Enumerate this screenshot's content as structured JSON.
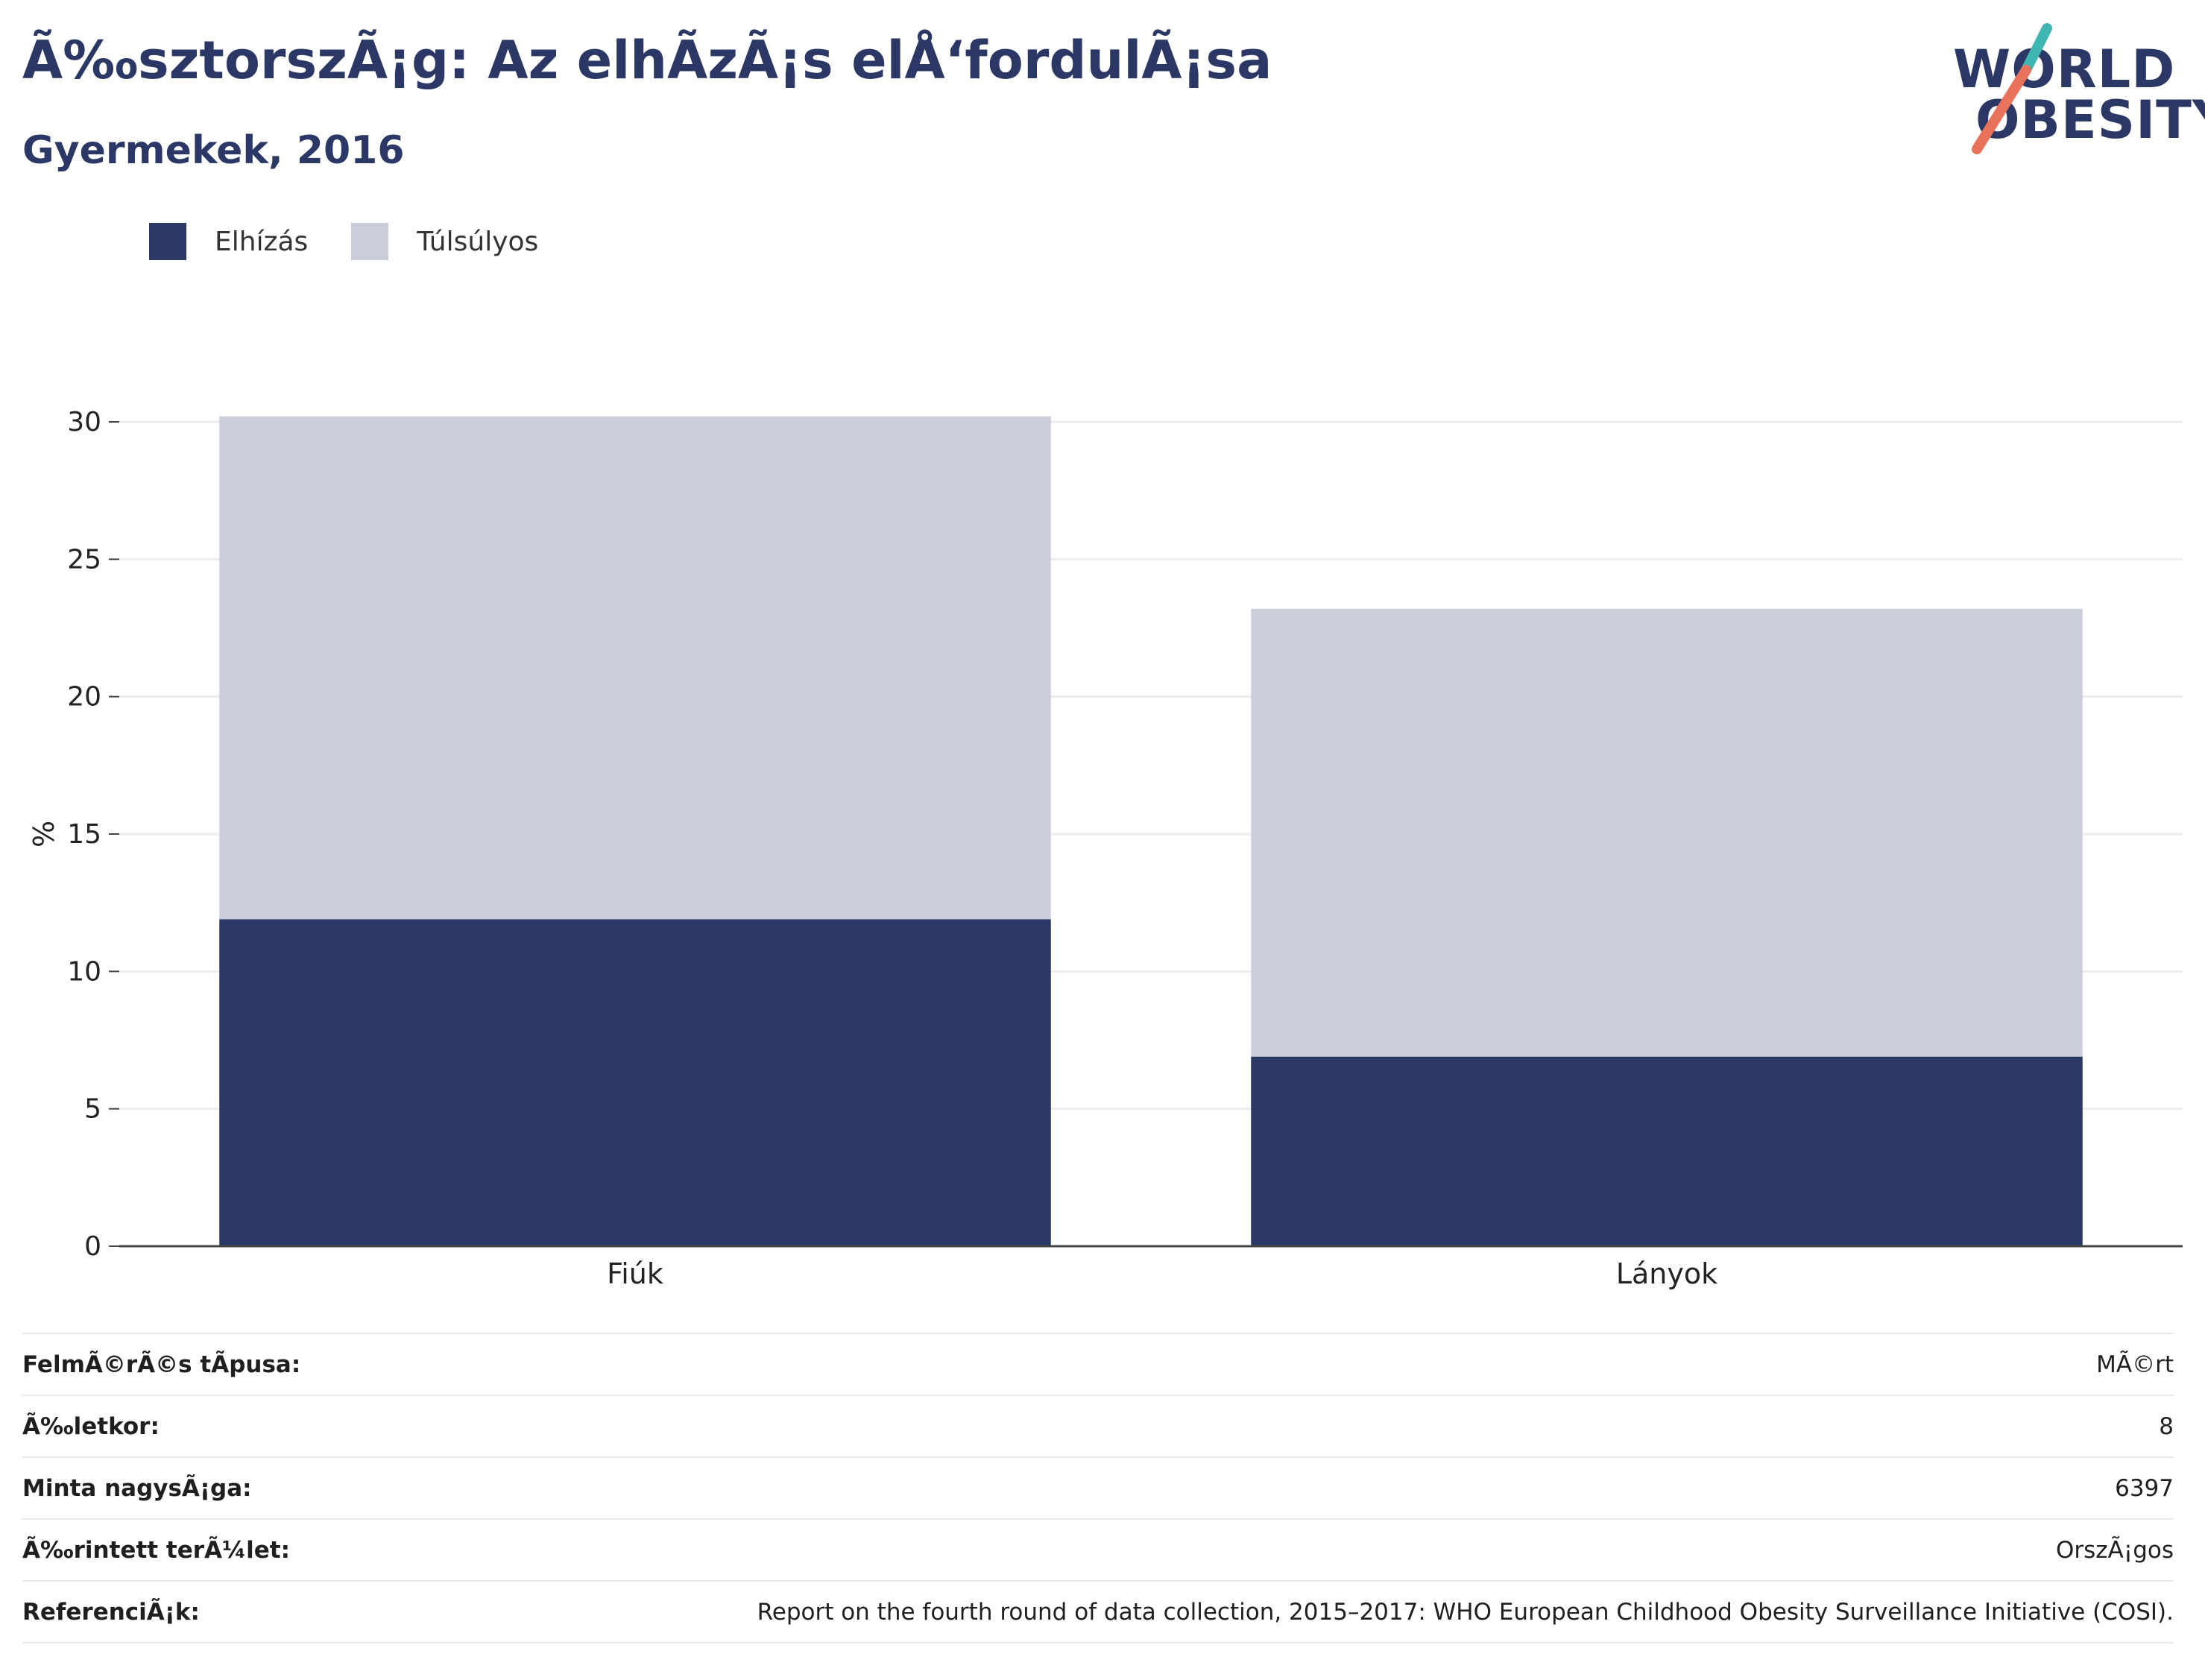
{
  "header": {
    "title": "Ã‰sztorszÃ¡g: Az elhÃzÃ¡s elÅ‘fordulÃ¡sa",
    "subtitle": "Gyermekek, 2016"
  },
  "logo": {
    "line1": "WORLD",
    "line2": "OBESITY",
    "slash_colors": [
      "#3fb6b2",
      "#e8735a"
    ]
  },
  "legend": {
    "items": [
      {
        "label": "Elhízás",
        "color": "#2b3764"
      },
      {
        "label": "Túlsúlyos",
        "color": "#cbcdd8"
      }
    ]
  },
  "chart_data": {
    "type": "bar",
    "stacked": true,
    "categories": [
      "Fiúk",
      "Lányok"
    ],
    "series": [
      {
        "name": "Elhízás",
        "values": [
          11.9,
          6.9
        ],
        "color": "#2b3764"
      },
      {
        "name": "Túlsúlyos",
        "values": [
          18.3,
          16.3
        ],
        "color": "#cbcdd8"
      }
    ],
    "ylabel": "%",
    "ylim": [
      0,
      30
    ],
    "yticks": [
      0,
      5,
      10,
      15,
      20,
      25,
      30
    ],
    "grid": true,
    "legend_position": "top-left"
  },
  "info": {
    "rows": [
      {
        "label": "FelmÃ©rÃ©s tÃpusa:",
        "value": "MÃ©rt"
      },
      {
        "label": "Ã‰letkor:",
        "value": "8"
      },
      {
        "label": "Minta nagysÃ¡ga:",
        "value": "6397"
      },
      {
        "label": "Ã‰rintett terÃ¼let:",
        "value": "OrszÃ¡gos"
      },
      {
        "label": "ReferenciÃ¡k:",
        "value": "Report on the fourth round of data collection, 2015–2017: WHO European Childhood Obesity Surveillance Initiative (COSI)."
      }
    ]
  }
}
